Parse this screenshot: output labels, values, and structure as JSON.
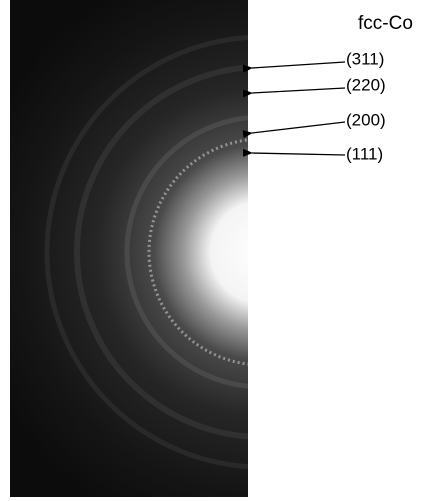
{
  "title": "fcc-Co",
  "labels": [
    "(311)",
    "(220)",
    "(200)",
    "(111)"
  ]
}
